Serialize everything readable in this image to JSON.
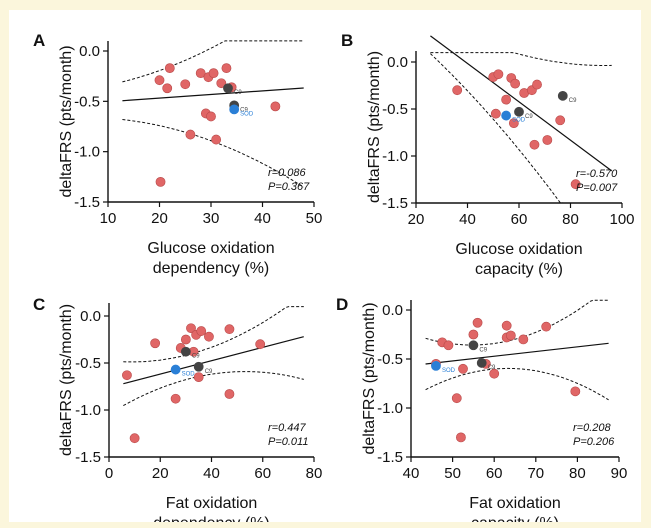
{
  "chart_data": [
    {
      "id": "A",
      "type": "scatter",
      "panel_label": "A",
      "xlabel": [
        "Glucose oxidation",
        "dependency (%)"
      ],
      "ylabel": "deltaFRS (pts/month)",
      "xlim": [
        10,
        50
      ],
      "ylim": [
        -1.5,
        0.1
      ],
      "xticks": [
        10,
        20,
        30,
        40,
        50
      ],
      "yticks": [
        0.0,
        -0.5,
        -1.0,
        -1.5
      ],
      "ytick_labels": [
        "0.0",
        "-0.5",
        "-1.0",
        "-1.5"
      ],
      "stats": [
        "r=0.086",
        "P=0.367"
      ],
      "points": [
        [
          20.2,
          -1.3
        ],
        [
          20,
          -0.29
        ],
        [
          22,
          -0.17
        ],
        [
          21.5,
          -0.37
        ],
        [
          25,
          -0.33
        ],
        [
          26,
          -0.83
        ],
        [
          28,
          -0.22
        ],
        [
          29,
          -0.62
        ],
        [
          29.5,
          -0.26
        ],
        [
          30,
          -0.65
        ],
        [
          30.5,
          -0.22
        ],
        [
          31,
          -0.88
        ],
        [
          32,
          -0.32
        ],
        [
          33,
          -0.17
        ],
        [
          34,
          -0.36
        ],
        [
          42.5,
          -0.55
        ]
      ],
      "highlighted": [
        {
          "x": 33.3,
          "y": -0.37,
          "label": "C9",
          "color": "#444444"
        },
        {
          "x": 34.5,
          "y": -0.54,
          "label": "C9",
          "color": "#444444"
        },
        {
          "x": 34.5,
          "y": -0.58,
          "label": "SOD",
          "color": "#2a7fd6"
        }
      ],
      "fit": [
        -0.54,
        0.0036
      ],
      "ci": {
        "at_min": 0.56,
        "min_half": 0.13,
        "curv": 0.00038,
        "clip": [
          -1.5,
          0.1
        ]
      }
    },
    {
      "id": "B",
      "type": "scatter",
      "panel_label": "B",
      "xlabel": [
        "Glucose oxidation",
        "capacity (%)"
      ],
      "ylabel": "deltaFRS (pts/month)",
      "xlim": [
        20,
        100
      ],
      "ylim": [
        -1.5,
        0.1
      ],
      "xticks": [
        20,
        40,
        60,
        80,
        100
      ],
      "yticks": [
        0.0,
        -0.5,
        -1.0,
        -1.5
      ],
      "ytick_labels": [
        "0.0",
        "-0.5",
        "-1.0",
        "-1.5"
      ],
      "stats": [
        "r=-0.570",
        "P=0.007"
      ],
      "points": [
        [
          36,
          -0.3
        ],
        [
          50,
          -0.16
        ],
        [
          52,
          -0.13
        ],
        [
          51,
          -0.55
        ],
        [
          55,
          -0.4
        ],
        [
          57,
          -0.17
        ],
        [
          58,
          -0.65
        ],
        [
          58.5,
          -0.23
        ],
        [
          62,
          -0.33
        ],
        [
          65,
          -0.3
        ],
        [
          66,
          -0.88
        ],
        [
          67,
          -0.24
        ],
        [
          71,
          -0.83
        ],
        [
          76,
          -0.62
        ],
        [
          82,
          -1.3
        ]
      ],
      "highlighted": [
        {
          "x": 77,
          "y": -0.36,
          "label": "C9",
          "color": "#444444"
        },
        {
          "x": 60,
          "y": -0.53,
          "label": "C9",
          "color": "#444444"
        },
        {
          "x": 55,
          "y": -0.57,
          "label": "SOD",
          "color": "#2a7fd6"
        }
      ],
      "fit": [
        0.8,
        -0.0204
      ],
      "ci": {
        "at_min": 0.57,
        "min_half": 0.12,
        "curv": 0.00011,
        "clip": [
          -1.5,
          0.1
        ]
      }
    },
    {
      "id": "C",
      "type": "scatter",
      "panel_label": "C",
      "xlabel": [
        "Fat oxidation",
        "dependency (%)"
      ],
      "ylabel": "deltaFRS (pts/month)",
      "xlim": [
        0,
        80
      ],
      "ylim": [
        -1.5,
        0.1
      ],
      "xticks": [
        0,
        20,
        40,
        60,
        80
      ],
      "yticks": [
        0.0,
        -0.5,
        -1.0,
        -1.5
      ],
      "ytick_labels": [
        "0.0",
        "-0.5",
        "-1.0",
        "-1.5"
      ],
      "stats": [
        "r=0.447",
        "P=0.011"
      ],
      "points": [
        [
          7,
          -0.63
        ],
        [
          10,
          -1.3
        ],
        [
          18,
          -0.29
        ],
        [
          26,
          -0.88
        ],
        [
          28,
          -0.34
        ],
        [
          30,
          -0.25
        ],
        [
          32,
          -0.13
        ],
        [
          33,
          -0.38
        ],
        [
          34,
          -0.2
        ],
        [
          35,
          -0.65
        ],
        [
          36,
          -0.16
        ],
        [
          39,
          -0.22
        ],
        [
          47,
          -0.14
        ],
        [
          47,
          -0.83
        ],
        [
          59,
          -0.3
        ]
      ],
      "highlighted": [
        {
          "x": 30,
          "y": -0.38,
          "label": "C9",
          "color": "#444444"
        },
        {
          "x": 35,
          "y": -0.54,
          "label": "C9",
          "color": "#444444"
        },
        {
          "x": 26,
          "y": -0.57,
          "label": "SOD",
          "color": "#2a7fd6"
        }
      ],
      "fit": [
        -0.76,
        0.0071
      ],
      "ci": {
        "at_min": 31,
        "min_half": 0.13,
        "curv": 0.00016,
        "clip": [
          -1.5,
          0.1
        ]
      }
    },
    {
      "id": "D",
      "type": "scatter",
      "panel_label": "D",
      "xlabel": [
        "Fat oxidation",
        "capacity (%)"
      ],
      "ylabel": "deltaFRS (pts/month)",
      "xlim": [
        40,
        90
      ],
      "ylim": [
        -1.5,
        0.1
      ],
      "xticks": [
        40,
        50,
        60,
        70,
        80,
        90
      ],
      "yticks": [
        0.0,
        -0.5,
        -1.0,
        -1.5
      ],
      "ytick_labels": [
        "0.0",
        "-0.5",
        "-1.0",
        "-1.5"
      ],
      "stats": [
        "r=0.208",
        "P=0.206"
      ],
      "points": [
        [
          46,
          -0.55
        ],
        [
          47.5,
          -0.33
        ],
        [
          49,
          -0.36
        ],
        [
          51,
          -0.9
        ],
        [
          52,
          -1.3
        ],
        [
          52.5,
          -0.6
        ],
        [
          55,
          -0.25
        ],
        [
          56,
          -0.13
        ],
        [
          58,
          -0.55
        ],
        [
          60,
          -0.65
        ],
        [
          63,
          -0.28
        ],
        [
          63,
          -0.16
        ],
        [
          64,
          -0.26
        ],
        [
          67,
          -0.3
        ],
        [
          72.5,
          -0.17
        ],
        [
          79.5,
          -0.83
        ]
      ],
      "highlighted": [
        {
          "x": 55,
          "y": -0.36,
          "label": "C9",
          "color": "#444444"
        },
        {
          "x": 57,
          "y": -0.54,
          "label": "C9",
          "color": "#444444"
        },
        {
          "x": 46,
          "y": -0.57,
          "label": "SOD",
          "color": "#2a7fd6"
        }
      ],
      "fit": [
        -0.76,
        0.0048
      ],
      "ci": {
        "at_min": 59,
        "min_half": 0.13,
        "curv": 0.00055,
        "clip": [
          -1.5,
          0.1
        ]
      }
    }
  ],
  "colors": {
    "point": "#e06666",
    "point_edge": "#b84a4a",
    "c9": "#444444",
    "sod": "#2a7fd6",
    "line": "#111111"
  }
}
